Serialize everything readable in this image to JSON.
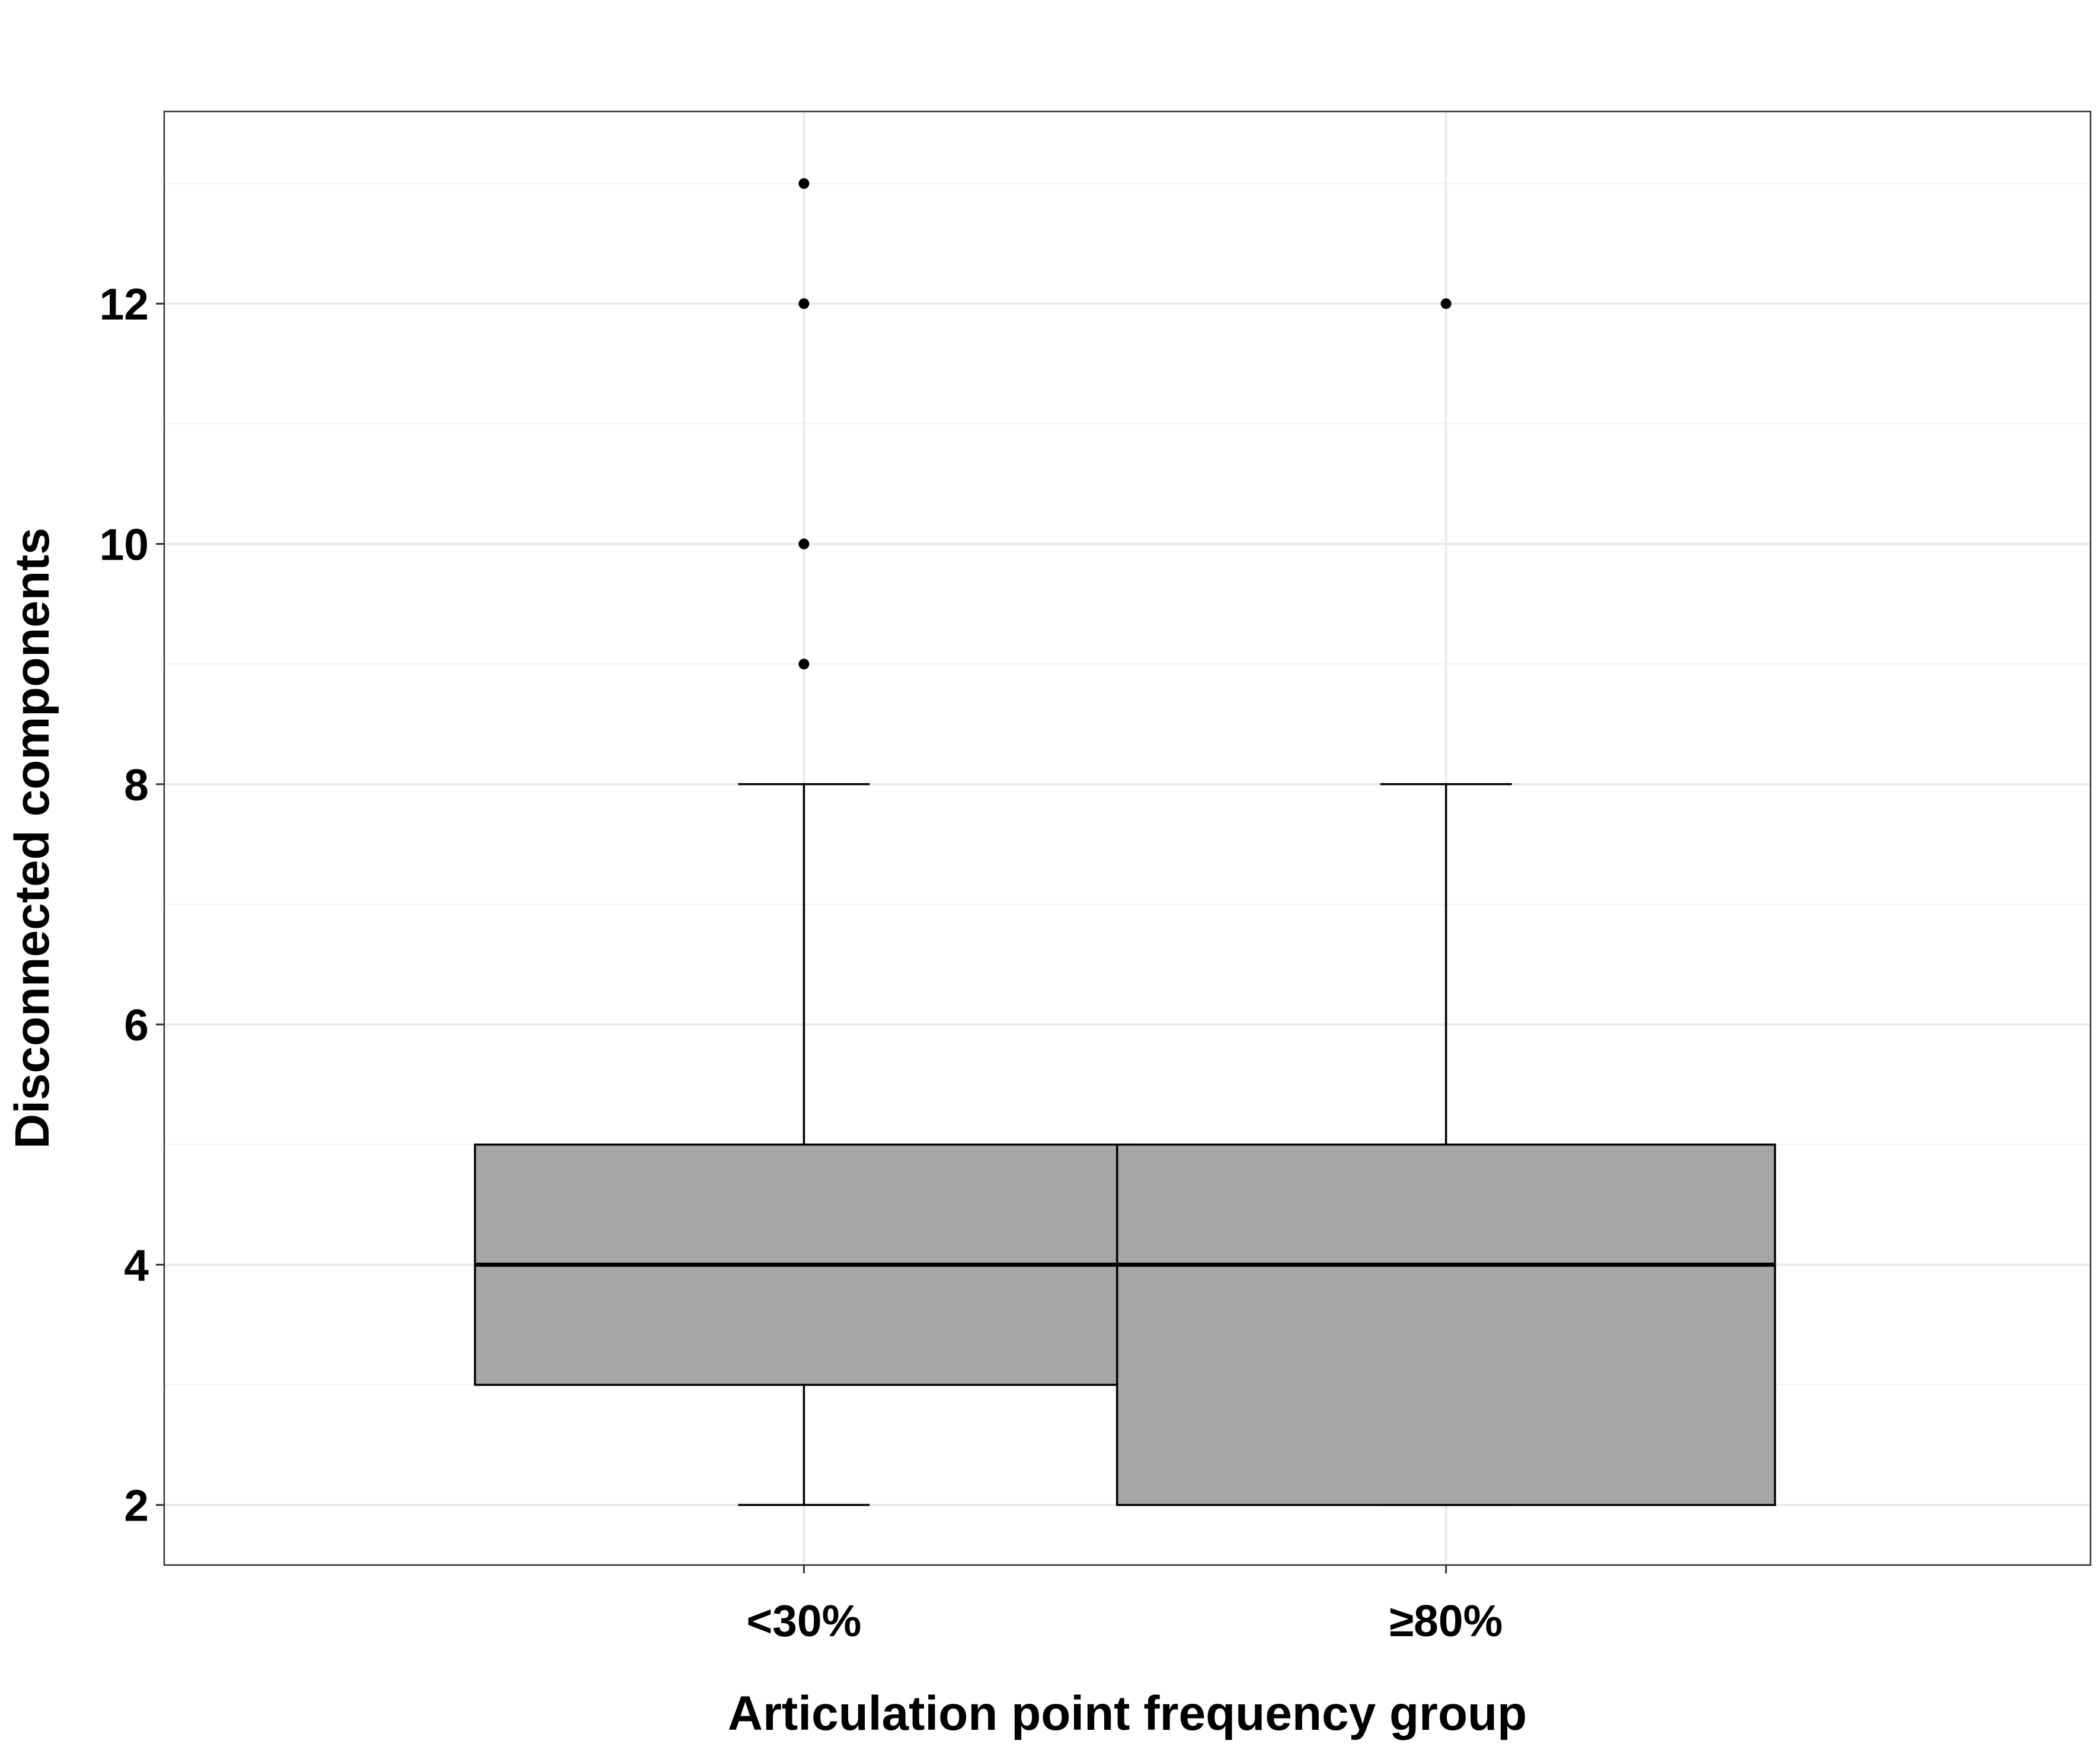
{
  "chart_data": {
    "type": "boxplot",
    "title": "",
    "xlabel": "Articulation point frequency group",
    "ylabel": "Disconnected components",
    "categories": [
      "<30%",
      "≥80%"
    ],
    "ylim": [
      1.5,
      13.6
    ],
    "y_ticks": [
      2,
      4,
      6,
      8,
      10,
      12
    ],
    "y_tick_labels": [
      "2",
      "4",
      "6",
      "8",
      "10",
      "12"
    ],
    "grid": true,
    "legend": "none",
    "box_fill": "#a6a6a6",
    "series": [
      {
        "category": "<30%",
        "whisker_low": 2,
        "q1": 3,
        "median": 4,
        "q3": 5,
        "whisker_high": 8,
        "outliers": [
          9,
          10,
          12,
          13
        ]
      },
      {
        "category": "≥80%",
        "whisker_low": 2,
        "q1": 2,
        "median": 4,
        "q3": 5,
        "whisker_high": 8,
        "outliers": [
          12
        ]
      }
    ]
  }
}
